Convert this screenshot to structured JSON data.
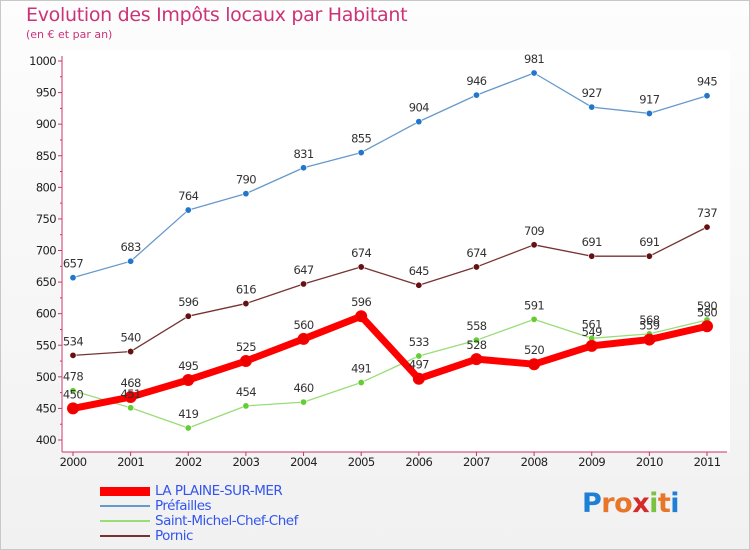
{
  "title": "Evolution des Impôts locaux par Habitant",
  "subtitle": "(en € et par an)",
  "logo": {
    "letters": [
      "P",
      "r",
      "o",
      "x",
      "i",
      "t",
      "i"
    ],
    "colors": [
      "#1e7fd6",
      "#e8762a",
      "#e8762a",
      "#d42a2a",
      "#7cc242",
      "#e8762a",
      "#1e7fd6"
    ]
  },
  "chart_data": {
    "type": "line",
    "title": "Evolution des Impôts locaux par Habitant",
    "subtitle": "(en € et par an)",
    "x": [
      "2000",
      "2001",
      "2002",
      "2003",
      "2004",
      "2005",
      "2006",
      "2007",
      "2008",
      "2009",
      "2010",
      "2011"
    ],
    "ylim": [
      400,
      1000
    ],
    "yticks": [
      "400",
      "450",
      "500",
      "550",
      "600",
      "650",
      "700",
      "750",
      "800",
      "850",
      "900",
      "950",
      "1000"
    ],
    "grid": false,
    "legend_position": "bottom-left",
    "series": [
      {
        "name": "LA PLAINE-SUR-MER",
        "color": "#ff0000",
        "dot": "#ee0000",
        "bold": true,
        "values": [
          450,
          468,
          495,
          525,
          560,
          596,
          497,
          528,
          520,
          549,
          559,
          580
        ]
      },
      {
        "name": "Préfailles",
        "color": "#6699cc",
        "dot": "#2277cc",
        "bold": false,
        "values": [
          657,
          683,
          764,
          790,
          831,
          855,
          904,
          946,
          981,
          927,
          917,
          945
        ]
      },
      {
        "name": "Saint-Michel-Chef-Chef",
        "color": "#99dd77",
        "dot": "#66cc33",
        "bold": false,
        "values": [
          478,
          451,
          419,
          454,
          460,
          491,
          533,
          558,
          591,
          561,
          568,
          590
        ]
      },
      {
        "name": "Pornic",
        "color": "#773333",
        "dot": "#661111",
        "bold": false,
        "values": [
          534,
          540,
          596,
          616,
          647,
          674,
          645,
          674,
          709,
          691,
          691,
          737
        ]
      }
    ]
  }
}
